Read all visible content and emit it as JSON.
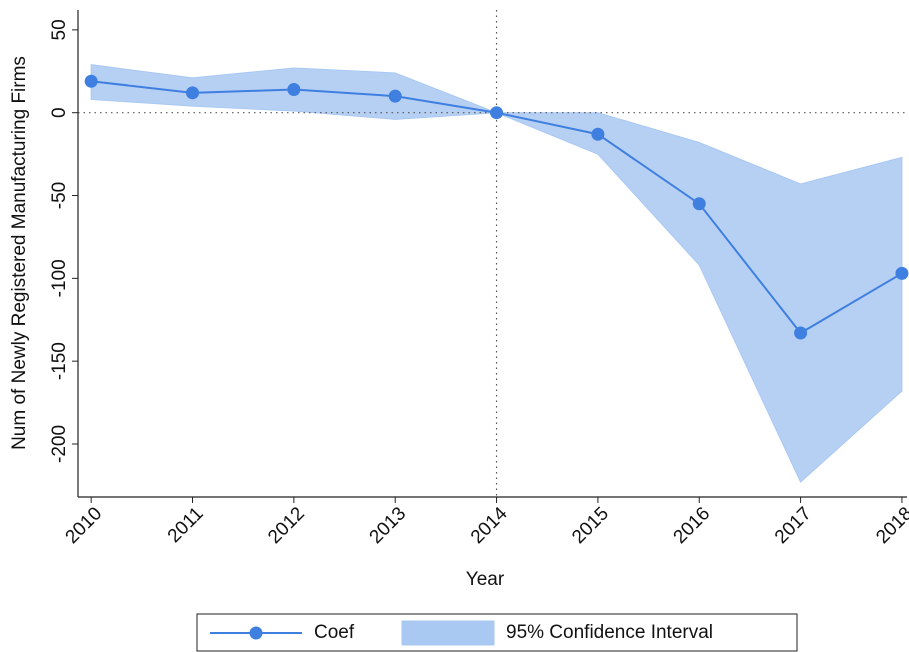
{
  "chart_data": {
    "type": "line",
    "x_label": "Year",
    "y_label": "Num of Newly Registered Manufacturing Firms",
    "x": [
      2010,
      2011,
      2012,
      2013,
      2014,
      2015,
      2016,
      2017,
      2018
    ],
    "series": [
      {
        "name": "Coef",
        "color": "#3f7fe0",
        "values": [
          19,
          12,
          14,
          10,
          0,
          -13,
          -55,
          -133,
          -97
        ]
      },
      {
        "name": "95% Confidence Interval",
        "color": "#a9c8f2",
        "lower": [
          8,
          4,
          1,
          -4,
          0,
          -25,
          -92,
          -223,
          -168
        ],
        "upper": [
          29,
          21,
          27,
          24,
          0,
          0,
          -18,
          -43,
          -27
        ]
      }
    ],
    "xlim": [
      2009.87,
      2018.05
    ],
    "ylim": [
      -232,
      62
    ],
    "xticks": [
      2010,
      2011,
      2012,
      2013,
      2014,
      2015,
      2016,
      2017,
      2018
    ],
    "yticks": [
      50,
      0,
      -50,
      -100,
      -150,
      -200
    ],
    "hline": 0,
    "vline": 2014
  }
}
